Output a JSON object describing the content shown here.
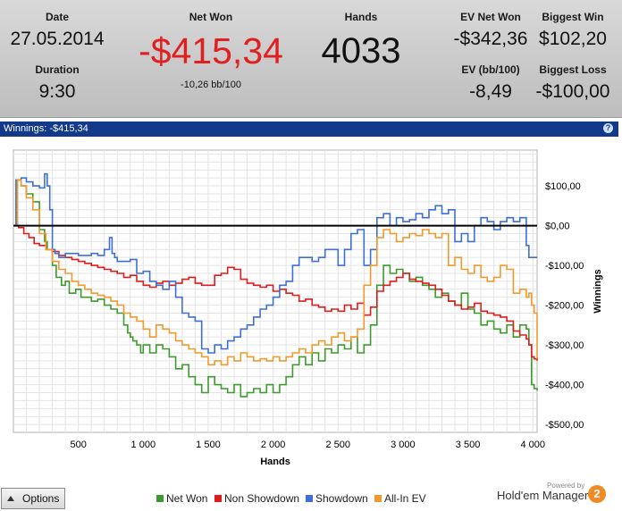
{
  "summary": {
    "date_label": "Date",
    "date_value": "27.05.2014",
    "duration_label": "Duration",
    "duration_value": "9:30",
    "net_won_label": "Net Won",
    "net_won_value": "-$415,34",
    "net_won_sub": "-10,26 bb/100",
    "hands_label": "Hands",
    "hands_value": "4033",
    "ev_net_won_label": "EV Net Won",
    "ev_net_won_value": "-$342,36",
    "biggest_win_label": "Biggest Win",
    "biggest_win_value": "$102,20",
    "ev_bb_label": "EV (bb/100)",
    "ev_bb_value": "-8,49",
    "biggest_loss_label": "Biggest Loss",
    "biggest_loss_value": "-$100,00"
  },
  "colors": {
    "net_won_red": "#e02020",
    "titlebar": "#12398a"
  },
  "panel": {
    "title": "Winnings: -$415,34",
    "help_icon": "?"
  },
  "footer": {
    "options_label": "Options",
    "powered_by": "Powered by",
    "brand_name": "Hold'em Manager",
    "brand_badge": "2"
  },
  "chart_data": {
    "type": "line",
    "xlabel": "Hands",
    "ylabel": "Winnings",
    "xlim": [
      0,
      4033
    ],
    "ylim": [
      -520,
      190
    ],
    "grid": true,
    "legend": "bottom",
    "x_ticks": [
      500,
      1000,
      1500,
      2000,
      2500,
      3000,
      3500,
      4000
    ],
    "x_tick_labels": [
      "500",
      "1 000",
      "1 500",
      "2 000",
      "2 500",
      "3 000",
      "3 500",
      "4 000"
    ],
    "y_ticks": [
      100,
      0,
      -100,
      -200,
      -300,
      -400,
      -500
    ],
    "y_tick_labels": [
      "$100,00",
      "$0,00",
      "-$100,00",
      "-$200,00",
      "-$300,00",
      "-$400,00",
      "-$500,00"
    ],
    "zero_line": 0,
    "series": [
      {
        "name": "Net Won",
        "color": "#3d9a2e",
        "x": [
          0,
          30,
          60,
          100,
          150,
          200,
          240,
          260,
          300,
          330,
          370,
          400,
          430,
          480,
          520,
          560,
          600,
          650,
          700,
          750,
          800,
          850,
          880,
          900,
          920,
          950,
          980,
          1000,
          1050,
          1100,
          1150,
          1200,
          1250,
          1300,
          1350,
          1400,
          1450,
          1500,
          1550,
          1600,
          1650,
          1700,
          1750,
          1800,
          1850,
          1900,
          1950,
          2000,
          2050,
          2100,
          2150,
          2200,
          2250,
          2300,
          2350,
          2400,
          2450,
          2500,
          2550,
          2600,
          2650,
          2700,
          2750,
          2800,
          2850,
          2900,
          2950,
          3000,
          3050,
          3100,
          3150,
          3200,
          3250,
          3300,
          3350,
          3400,
          3450,
          3500,
          3550,
          3600,
          3650,
          3700,
          3750,
          3800,
          3850,
          3900,
          3950,
          3970,
          3990,
          4010,
          4033
        ],
        "y": [
          0,
          115,
          100,
          80,
          60,
          -10,
          -40,
          -60,
          -100,
          -130,
          -150,
          -140,
          -170,
          -160,
          -180,
          -180,
          -190,
          -185,
          -200,
          -210,
          -220,
          -250,
          -270,
          -280,
          -290,
          -300,
          -320,
          -300,
          -320,
          -300,
          -310,
          -330,
          -360,
          -350,
          -380,
          -400,
          -420,
          -380,
          -400,
          -410,
          -420,
          -400,
          -430,
          -420,
          -410,
          -420,
          -400,
          -420,
          -400,
          -380,
          -350,
          -330,
          -350,
          -320,
          -340,
          -310,
          -320,
          -300,
          -310,
          -280,
          -320,
          -300,
          -250,
          -150,
          -100,
          -120,
          -110,
          -120,
          -140,
          -130,
          -150,
          -160,
          -180,
          -170,
          -190,
          -200,
          -170,
          -210,
          -220,
          -250,
          -240,
          -260,
          -270,
          -250,
          -280,
          -250,
          -260,
          -300,
          -400,
          -410,
          -415
        ]
      },
      {
        "name": "Non Showdown",
        "color": "#dd1c1c",
        "x": [
          0,
          40,
          80,
          120,
          160,
          200,
          250,
          300,
          350,
          400,
          450,
          500,
          550,
          600,
          650,
          700,
          750,
          800,
          850,
          900,
          950,
          1000,
          1050,
          1100,
          1150,
          1200,
          1250,
          1300,
          1350,
          1400,
          1450,
          1500,
          1550,
          1600,
          1650,
          1700,
          1750,
          1800,
          1850,
          1900,
          1950,
          2000,
          2050,
          2100,
          2150,
          2200,
          2250,
          2300,
          2350,
          2400,
          2450,
          2500,
          2550,
          2600,
          2650,
          2700,
          2750,
          2800,
          2850,
          2900,
          2950,
          3000,
          3050,
          3100,
          3150,
          3200,
          3250,
          3300,
          3350,
          3400,
          3450,
          3500,
          3550,
          3600,
          3650,
          3700,
          3750,
          3800,
          3850,
          3900,
          3950,
          3970,
          3990,
          4010,
          4033
        ],
        "y": [
          0,
          -5,
          -20,
          -30,
          -45,
          -50,
          -60,
          -65,
          -75,
          -80,
          -85,
          -90,
          -95,
          -100,
          -105,
          -110,
          -115,
          -120,
          -130,
          -125,
          -140,
          -150,
          -155,
          -145,
          -140,
          -150,
          -145,
          -135,
          -130,
          -145,
          -150,
          -150,
          -125,
          -120,
          -105,
          -110,
          -135,
          -145,
          -150,
          -155,
          -150,
          -165,
          -160,
          -170,
          -175,
          -190,
          -185,
          -200,
          -205,
          -215,
          -210,
          -215,
          -200,
          -210,
          -195,
          -225,
          -205,
          -165,
          -150,
          -140,
          -130,
          -120,
          -135,
          -140,
          -145,
          -150,
          -160,
          -175,
          -190,
          -200,
          -210,
          -205,
          -195,
          -215,
          -220,
          -225,
          -230,
          -240,
          -265,
          -275,
          -285,
          -300,
          -330,
          -335,
          -340
        ]
      },
      {
        "name": "Showdown",
        "color": "#3d6fd6",
        "x": [
          0,
          20,
          60,
          100,
          150,
          200,
          240,
          260,
          280,
          300,
          320,
          350,
          400,
          500,
          600,
          650,
          700,
          740,
          760,
          780,
          800,
          850,
          900,
          950,
          1000,
          1050,
          1100,
          1150,
          1200,
          1250,
          1300,
          1350,
          1400,
          1450,
          1500,
          1550,
          1600,
          1650,
          1700,
          1750,
          1800,
          1850,
          1900,
          1950,
          2000,
          2050,
          2100,
          2150,
          2200,
          2250,
          2300,
          2350,
          2400,
          2450,
          2500,
          2550,
          2600,
          2650,
          2700,
          2750,
          2800,
          2850,
          2900,
          2950,
          3000,
          3050,
          3100,
          3150,
          3200,
          3250,
          3300,
          3350,
          3400,
          3450,
          3500,
          3550,
          3600,
          3650,
          3700,
          3750,
          3800,
          3850,
          3900,
          3950,
          3970,
          3990,
          4010,
          4033
        ],
        "y": [
          0,
          115,
          120,
          110,
          100,
          95,
          130,
          100,
          40,
          -60,
          -70,
          -80,
          -70,
          -75,
          -70,
          -75,
          -60,
          -30,
          -70,
          -80,
          -90,
          -90,
          -85,
          -120,
          -115,
          -140,
          -150,
          -160,
          -140,
          -180,
          -220,
          -230,
          -240,
          -310,
          -320,
          -300,
          -310,
          -290,
          -280,
          -260,
          -250,
          -230,
          -210,
          -200,
          -180,
          -150,
          -140,
          -100,
          -80,
          -80,
          -90,
          -80,
          -60,
          -60,
          -100,
          -60,
          -20,
          -10,
          -100,
          -60,
          20,
          30,
          0,
          20,
          10,
          15,
          30,
          20,
          40,
          50,
          30,
          40,
          -40,
          -20,
          -40,
          0,
          20,
          10,
          -10,
          10,
          20,
          10,
          20,
          -50,
          -80,
          -80,
          -80,
          -80
        ]
      },
      {
        "name": "All-In EV",
        "color": "#f2992e",
        "x": [
          0,
          30,
          60,
          100,
          150,
          200,
          250,
          300,
          350,
          400,
          450,
          500,
          550,
          600,
          650,
          700,
          750,
          800,
          850,
          900,
          950,
          1000,
          1050,
          1100,
          1150,
          1200,
          1250,
          1300,
          1350,
          1400,
          1450,
          1500,
          1550,
          1600,
          1650,
          1700,
          1750,
          1800,
          1850,
          1900,
          1950,
          2000,
          2050,
          2100,
          2150,
          2200,
          2250,
          2300,
          2350,
          2400,
          2450,
          2500,
          2550,
          2600,
          2650,
          2700,
          2750,
          2800,
          2850,
          2900,
          2950,
          3000,
          3050,
          3100,
          3150,
          3200,
          3250,
          3300,
          3350,
          3400,
          3450,
          3500,
          3550,
          3600,
          3650,
          3700,
          3750,
          3800,
          3850,
          3900,
          3950,
          3970,
          3990,
          4010,
          4033
        ],
        "y": [
          0,
          115,
          100,
          70,
          40,
          -20,
          -60,
          -90,
          -110,
          -120,
          -140,
          -150,
          -160,
          -170,
          -175,
          -180,
          -190,
          -200,
          -220,
          -230,
          -240,
          -260,
          -280,
          -250,
          -260,
          -270,
          -290,
          -300,
          -310,
          -320,
          -330,
          -350,
          -340,
          -350,
          -330,
          -340,
          -320,
          -330,
          -340,
          -335,
          -340,
          -330,
          -340,
          -330,
          -320,
          -310,
          -320,
          -300,
          -290,
          -300,
          -280,
          -270,
          -290,
          -280,
          -260,
          -150,
          -100,
          -30,
          -10,
          -20,
          -40,
          -30,
          -20,
          -25,
          -10,
          -20,
          -30,
          -20,
          -100,
          -80,
          -110,
          -120,
          -100,
          -130,
          -140,
          -130,
          -100,
          -110,
          -170,
          -160,
          -180,
          -170,
          -200,
          -220,
          -335
        ]
      }
    ]
  }
}
